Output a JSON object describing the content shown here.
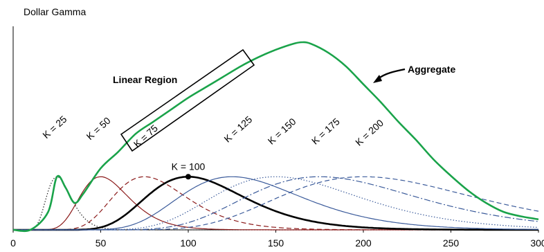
{
  "chart_data": {
    "type": "line",
    "title": "",
    "ylabel": "Dollar Gamma",
    "xlabel": "",
    "xlim": [
      0,
      300
    ],
    "xticks": [
      "0",
      "50",
      "100",
      "150",
      "200",
      "250",
      "300"
    ],
    "annotations": {
      "linear_region": "Linear Region",
      "aggregate": "Aggregate"
    },
    "series": [
      {
        "name": "K = 25",
        "strike": 25,
        "color": "#1f1f1f",
        "style": "dotted",
        "peak": 0.354
      },
      {
        "name": "K = 50",
        "strike": 50,
        "color": "#8b1a1a",
        "style": "solid",
        "peak": 0.354
      },
      {
        "name": "K = 75",
        "strike": 75,
        "color": "#8b1a1a",
        "style": "dashed",
        "peak": 0.354
      },
      {
        "name": "K = 100",
        "strike": 100,
        "color": "#000000",
        "style": "thick",
        "peak": 0.354
      },
      {
        "name": "K = 125",
        "strike": 125,
        "color": "#3a5a9a",
        "style": "solid",
        "peak": 0.354
      },
      {
        "name": "K = 150",
        "strike": 150,
        "color": "#3a5a9a",
        "style": "dotted",
        "peak": 0.354
      },
      {
        "name": "K = 175",
        "strike": 175,
        "color": "#3a5a9a",
        "style": "dashdot",
        "peak": 0.354
      },
      {
        "name": "K = 200",
        "strike": 200,
        "color": "#3a5a9a",
        "style": "dashed",
        "peak": 0.354
      }
    ],
    "aggregate_points": [
      [
        0,
        0.0
      ],
      [
        10,
        0.001
      ],
      [
        20,
        0.12
      ],
      [
        25,
        0.354
      ],
      [
        30,
        0.28
      ],
      [
        35,
        0.18
      ],
      [
        40,
        0.24
      ],
      [
        50,
        0.41
      ],
      [
        60,
        0.52
      ],
      [
        70,
        0.64
      ],
      [
        80,
        0.72
      ],
      [
        90,
        0.8
      ],
      [
        100,
        0.88
      ],
      [
        110,
        0.95
      ],
      [
        120,
        1.02
      ],
      [
        130,
        1.09
      ],
      [
        140,
        1.15
      ],
      [
        150,
        1.2
      ],
      [
        160,
        1.24
      ],
      [
        165,
        1.25
      ],
      [
        170,
        1.24
      ],
      [
        180,
        1.18
      ],
      [
        190,
        1.09
      ],
      [
        200,
        0.97
      ],
      [
        210,
        0.85
      ],
      [
        220,
        0.72
      ],
      [
        230,
        0.6
      ],
      [
        240,
        0.47
      ],
      [
        250,
        0.36
      ],
      [
        260,
        0.26
      ],
      [
        270,
        0.18
      ],
      [
        280,
        0.12
      ],
      [
        290,
        0.09
      ],
      [
        300,
        0.07
      ]
    ],
    "marker": {
      "strike": 100,
      "value": 0.354
    },
    "legend": "none",
    "grid": false,
    "colors": {
      "aggregate": "#1aa34a",
      "box": "#000000"
    }
  }
}
